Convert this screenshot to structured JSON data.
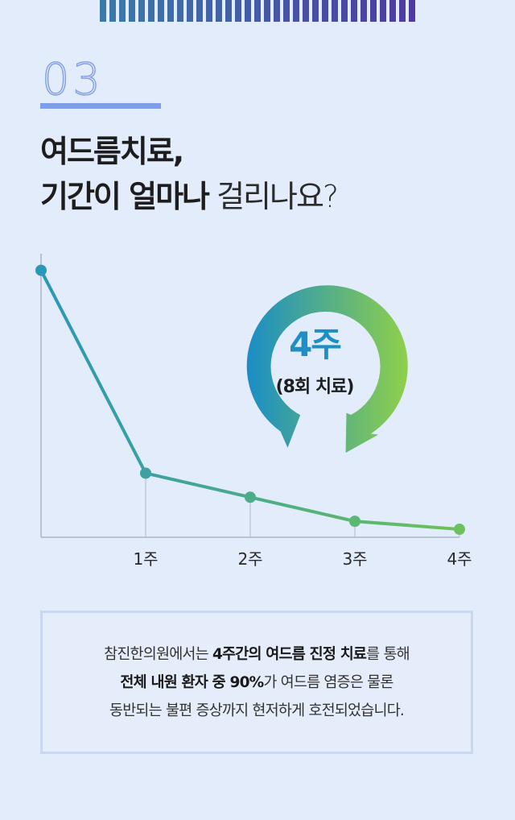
{
  "header": {
    "section_number": "03",
    "title_line1": "여드름치료,",
    "title_line2_bold": "기간이 얼마나",
    "title_line2_light": " 걸리나요?"
  },
  "colors": {
    "stripe_start": "#3a7aa8",
    "stripe_end": "#4e3aa3",
    "line_start": "#2a97b8",
    "line_end": "#6cc15a",
    "arrow_start": "#1a8dc6",
    "arrow_end": "#8fd04a"
  },
  "badge": {
    "big": "4주",
    "sub": "(8회 치료)"
  },
  "chart_data": {
    "type": "line",
    "x": [
      "",
      "1주",
      "2주",
      "3주",
      "4주"
    ],
    "values": [
      100,
      24,
      15,
      6,
      3
    ],
    "ylim": [
      0,
      105
    ],
    "grid": false
  },
  "note": {
    "line1": [
      {
        "text": "참진한의원에서는 ",
        "bold": false
      },
      {
        "text": "4주간의 여드름 진정 치료",
        "bold": true
      },
      {
        "text": "를 통해",
        "bold": false
      }
    ],
    "line2": [
      {
        "text": "전체 내원 환자 중 90%",
        "bold": true
      },
      {
        "text": "가 여드름 염증은 물론",
        "bold": false
      }
    ],
    "line3": [
      {
        "text": "동반되는 불편 증상까지 현저하게 호전되었습니다.",
        "bold": false
      }
    ]
  }
}
